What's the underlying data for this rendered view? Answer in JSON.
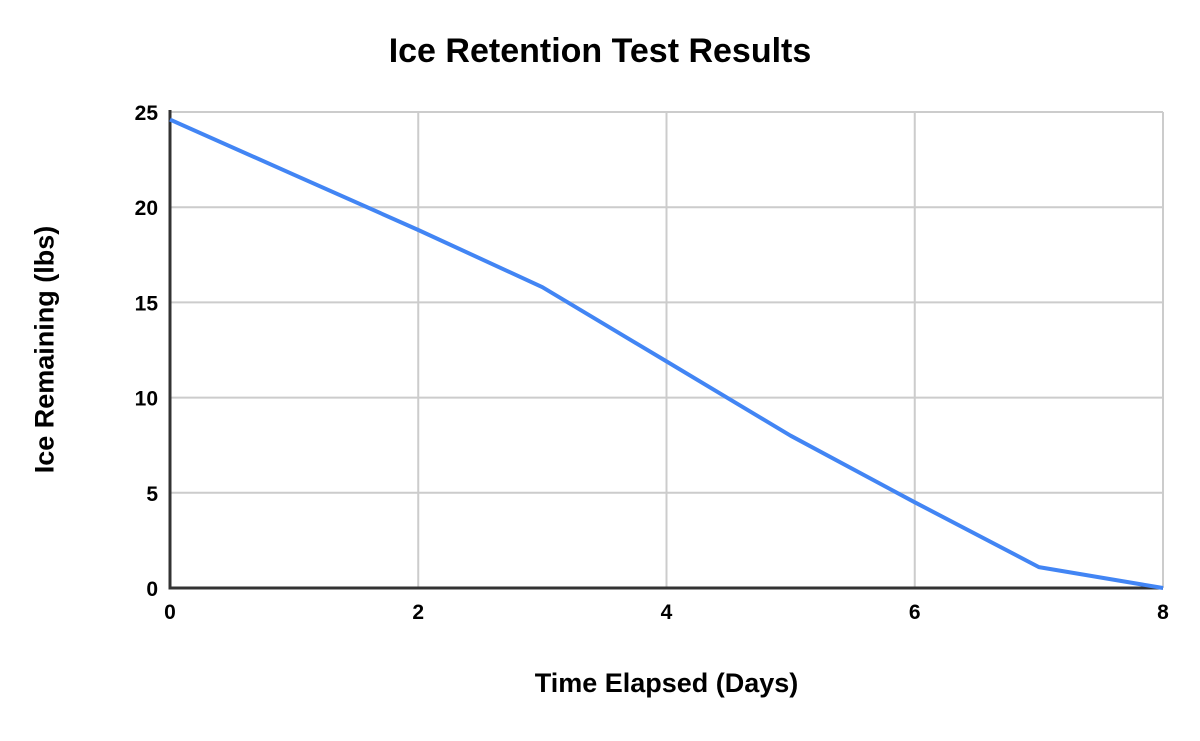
{
  "chart_data": {
    "type": "line",
    "title": "Ice Retention Test Results",
    "xlabel": "Time Elapsed (Days)",
    "ylabel": "Ice Remaining (lbs)",
    "x": [
      0,
      1,
      2,
      3,
      4,
      5,
      6,
      7,
      8
    ],
    "values": [
      24.6,
      21.7,
      18.8,
      15.8,
      11.9,
      8.0,
      4.5,
      1.1,
      0
    ],
    "xlim": [
      0,
      8
    ],
    "ylim": [
      0,
      25
    ],
    "x_ticks": [
      0,
      2,
      4,
      6,
      8
    ],
    "y_ticks": [
      0,
      5,
      10,
      15,
      20,
      25
    ],
    "grid": true,
    "legend": "none",
    "colors": {
      "line": "#4285f4",
      "grid": "#cccccc",
      "axis": "#333333",
      "text": "#000000",
      "background": "#ffffff"
    }
  }
}
